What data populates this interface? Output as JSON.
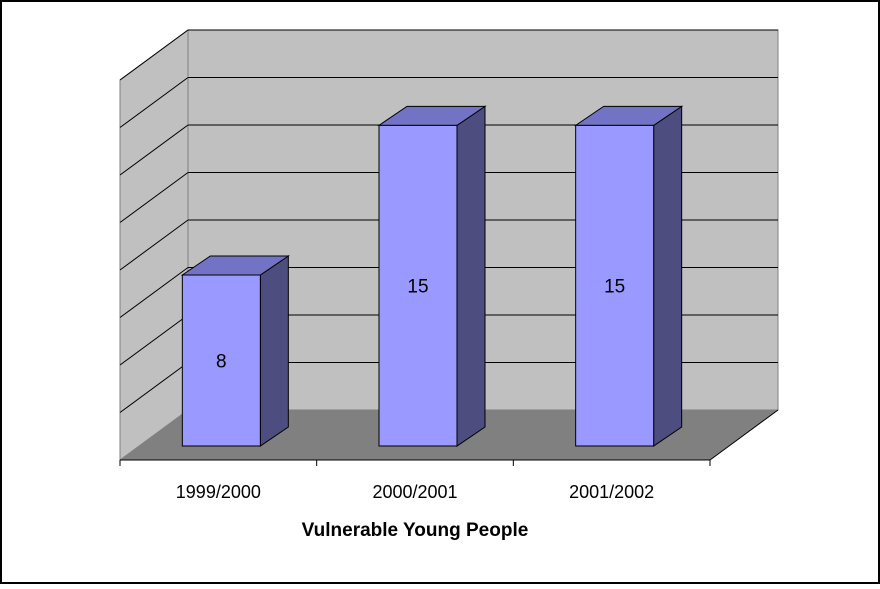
{
  "chart_data": {
    "type": "bar",
    "style": "3d-column",
    "categories": [
      "1999/2000",
      "2000/2001",
      "2001/2002"
    ],
    "values": [
      8,
      15,
      15
    ],
    "data_labels": [
      "8",
      "15",
      "15"
    ],
    "title": "",
    "xlabel": "Vulnerable Young People",
    "ylabel": "",
    "ylim": [
      0,
      16
    ],
    "y_tick_labels_shown": false,
    "grid": true,
    "legend": "none",
    "colors": {
      "bar_front": "#9999ff",
      "bar_side": "#4d4d80",
      "bar_top": "#7373c6",
      "back_wall": "#c0c0c0",
      "side_wall": "#c0c0c0",
      "floor": "#808080",
      "gridline": "#000000"
    }
  }
}
